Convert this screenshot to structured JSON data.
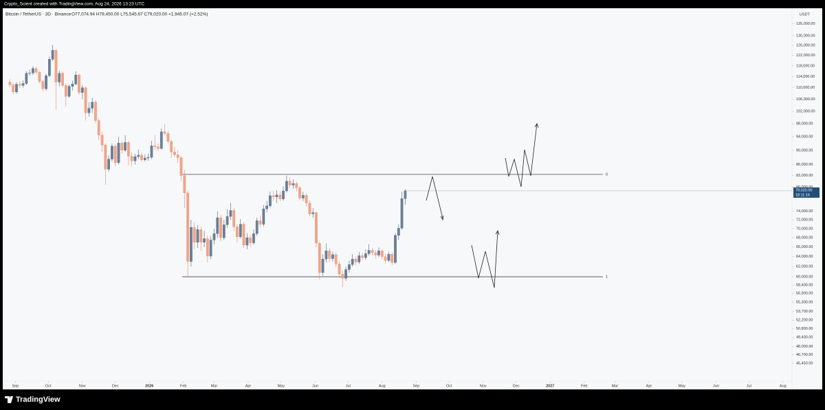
{
  "watermark": "Crypto_Scient created with TradingView.com, Aug 24, 2026 13:23 UTC",
  "brand": "TradingView",
  "chart_data": {
    "type": "candlestick",
    "title": "Bitcoin / TetherUS · 3D · Binance",
    "ohlc_legend": "O77,074.94 H79,450.00 L75,545.67 C79,020.00 +1,945.07 (+2.52%)",
    "currency": "USDT",
    "last_price_label": "79,020.00",
    "countdown": "18:11:16",
    "up_color": "#6b8097",
    "down_color": "#f2a487",
    "log_scale": true,
    "xlim": [
      "2025-08-18",
      "2027-08-08"
    ],
    "ylim": [
      42930,
      137000
    ],
    "x": [
      "2025-08-27",
      "2025-08-30",
      "2025-09-02",
      "2025-09-05",
      "2025-09-08",
      "2025-09-11",
      "2025-09-14",
      "2025-09-17",
      "2025-09-20",
      "2025-09-23",
      "2025-09-26",
      "2025-09-29",
      "2025-10-02",
      "2025-10-05",
      "2025-10-08",
      "2025-10-11",
      "2025-10-14",
      "2025-10-17",
      "2025-10-20",
      "2025-10-23",
      "2025-10-26",
      "2025-10-29",
      "2025-11-01",
      "2025-11-04",
      "2025-11-07",
      "2025-11-10",
      "2025-11-13",
      "2025-11-16",
      "2025-11-19",
      "2025-11-22",
      "2025-11-25",
      "2025-11-28",
      "2025-12-01",
      "2025-12-04",
      "2025-12-07",
      "2025-12-10",
      "2025-12-13",
      "2025-12-16",
      "2025-12-19",
      "2025-12-22",
      "2025-12-25",
      "2025-12-28",
      "2025-12-31",
      "2026-01-03",
      "2026-01-06",
      "2026-01-09",
      "2026-01-12",
      "2026-01-15",
      "2026-01-18",
      "2026-01-21",
      "2026-01-24",
      "2026-01-27",
      "2026-01-30",
      "2026-02-02",
      "2026-02-05",
      "2026-02-08",
      "2026-02-11",
      "2026-02-14",
      "2026-02-17",
      "2026-02-20",
      "2026-02-23",
      "2026-02-26",
      "2026-03-01",
      "2026-03-04",
      "2026-03-07",
      "2026-03-10",
      "2026-03-13",
      "2026-03-16",
      "2026-03-19",
      "2026-03-22",
      "2026-03-25",
      "2026-03-28",
      "2026-03-31",
      "2026-04-03",
      "2026-04-06",
      "2026-04-09",
      "2026-04-12",
      "2026-04-15",
      "2026-04-18",
      "2026-04-21",
      "2026-04-24",
      "2026-04-27",
      "2026-04-30",
      "2026-05-03",
      "2026-05-06",
      "2026-05-09",
      "2026-05-12",
      "2026-05-15",
      "2026-05-18",
      "2026-05-21",
      "2026-05-24",
      "2026-05-27",
      "2026-05-30",
      "2026-06-02",
      "2026-06-05",
      "2026-06-08",
      "2026-06-11",
      "2026-06-14",
      "2026-06-17",
      "2026-06-20",
      "2026-06-23",
      "2026-06-26",
      "2026-06-29",
      "2026-07-02",
      "2026-07-05",
      "2026-07-08",
      "2026-07-11",
      "2026-07-14",
      "2026-07-17",
      "2026-07-20",
      "2026-07-23",
      "2026-07-26",
      "2026-07-29",
      "2026-08-01",
      "2026-08-04",
      "2026-08-07",
      "2026-08-10",
      "2026-08-13",
      "2026-08-16",
      "2026-08-19",
      "2026-08-22"
    ],
    "open": [
      112000,
      111000,
      108500,
      111200,
      110800,
      111500,
      115200,
      115300,
      117000,
      115600,
      112200,
      109600,
      114300,
      120500,
      124000,
      112000,
      115200,
      110800,
      107000,
      110500,
      111300,
      114600,
      108300,
      110000,
      101500,
      103000,
      105000,
      99000,
      94500,
      91500,
      84700,
      87500,
      91200,
      86500,
      92100,
      90000,
      92300,
      88300,
      87000,
      88200,
      88600,
      87300,
      87800,
      88000,
      91300,
      91000,
      90500,
      95500,
      95000,
      92600,
      89500,
      88700,
      87900,
      83000,
      78500,
      63000,
      70300,
      67000,
      69800,
      67000,
      67800,
      64100,
      67500,
      68900,
      72500,
      68000,
      70900,
      72800,
      74200,
      70400,
      68200,
      71000,
      66400,
      68000,
      66900,
      68900,
      71800,
      71000,
      74600,
      75300,
      77800,
      77500,
      78000,
      77000,
      79000,
      81500,
      80500,
      80900,
      79800,
      77200,
      77900,
      76000,
      73400,
      73700,
      66800,
      60800,
      63500,
      65200,
      63600,
      64400,
      62500,
      60500,
      59700,
      61400,
      62400,
      63500,
      62900,
      64200,
      63800,
      64600,
      65300,
      64800,
      64300,
      65200,
      64000,
      63200,
      64500,
      62800,
      68500,
      70100,
      77074.94
    ],
    "high": [
      113000,
      111800,
      112000,
      112300,
      112600,
      116000,
      116600,
      117900,
      117600,
      116100,
      112900,
      115000,
      121500,
      126200,
      124500,
      116000,
      115800,
      111500,
      111200,
      112500,
      116000,
      115000,
      111000,
      110500,
      105000,
      106500,
      105600,
      99800,
      95500,
      92000,
      88500,
      92000,
      91800,
      94000,
      92800,
      94500,
      92800,
      89500,
      89000,
      90200,
      89300,
      88800,
      89000,
      92800,
      94500,
      92000,
      96500,
      97900,
      95800,
      93000,
      91000,
      90000,
      88500,
      84500,
      79200,
      72000,
      71500,
      70800,
      70500,
      69500,
      68500,
      68300,
      70000,
      74000,
      73200,
      72000,
      74500,
      76000,
      74800,
      71000,
      72200,
      71500,
      69000,
      68700,
      69800,
      72500,
      73000,
      75500,
      76500,
      78800,
      79000,
      79200,
      78900,
      80200,
      83000,
      82500,
      82000,
      81500,
      80200,
      78800,
      78400,
      76600,
      74800,
      74000,
      67200,
      64500,
      66800,
      65800,
      65000,
      64900,
      63000,
      61200,
      62000,
      63200,
      64500,
      64000,
      65000,
      64900,
      65500,
      66600,
      65800,
      65400,
      65900,
      65600,
      64600,
      65000,
      64900,
      69000,
      71000,
      78800,
      79450
    ],
    "low": [
      110200,
      107600,
      107900,
      109900,
      110000,
      111000,
      114200,
      114600,
      114800,
      111500,
      108600,
      108900,
      113800,
      119800,
      102500,
      110500,
      110000,
      103500,
      106500,
      109000,
      110800,
      107500,
      106000,
      99000,
      100300,
      101500,
      98200,
      93000,
      89500,
      80600,
      84000,
      86800,
      85500,
      86000,
      89000,
      89500,
      85800,
      85500,
      86000,
      87500,
      86700,
      86800,
      87000,
      87500,
      90000,
      89800,
      90200,
      94500,
      92000,
      87800,
      88000,
      86500,
      81500,
      74800,
      60000,
      62000,
      65500,
      65800,
      65200,
      66000,
      62800,
      63500,
      66500,
      68000,
      67200,
      67500,
      70200,
      72000,
      69500,
      67000,
      67800,
      65800,
      65500,
      66000,
      66500,
      68400,
      70200,
      70500,
      73800,
      74900,
      76500,
      76000,
      76400,
      76600,
      78600,
      79800,
      79500,
      78900,
      76800,
      76500,
      75200,
      72800,
      72500,
      66000,
      59500,
      60200,
      62800,
      62900,
      63000,
      61800,
      59800,
      58000,
      59200,
      60800,
      62000,
      62200,
      62500,
      63200,
      63300,
      64200,
      64200,
      63600,
      63900,
      63400,
      62600,
      62900,
      62300,
      62500,
      67500,
      69800,
      75545.67
    ],
    "close": [
      111000,
      108500,
      111200,
      110800,
      111500,
      115200,
      115300,
      117000,
      115600,
      112200,
      109600,
      114300,
      120500,
      124000,
      112000,
      115200,
      110800,
      107000,
      110500,
      111300,
      114600,
      108300,
      110000,
      101500,
      103000,
      105000,
      99000,
      94500,
      91500,
      84700,
      87500,
      91200,
      86500,
      92100,
      90000,
      92300,
      88300,
      87000,
      88200,
      88600,
      87300,
      87800,
      88000,
      91300,
      91000,
      90500,
      95500,
      95000,
      92600,
      89500,
      88700,
      87900,
      83000,
      78500,
      63000,
      70300,
      67000,
      69800,
      67000,
      67800,
      64100,
      67500,
      68900,
      72500,
      68000,
      70900,
      72800,
      74200,
      70400,
      68200,
      71000,
      66400,
      68000,
      66900,
      68900,
      71800,
      71000,
      74600,
      75300,
      77800,
      77500,
      78000,
      77000,
      79000,
      81500,
      80500,
      80900,
      79800,
      77200,
      77900,
      76000,
      73400,
      73700,
      66800,
      60800,
      63500,
      65200,
      63600,
      64400,
      62500,
      60500,
      59700,
      61400,
      62400,
      63500,
      62900,
      64200,
      63800,
      64600,
      65300,
      64800,
      64300,
      65200,
      64000,
      63200,
      64500,
      62800,
      68500,
      70100,
      77074.94,
      79020
    ],
    "levels": [
      {
        "price": 83300,
        "start": "2026-01-31",
        "end": "2027-02-18",
        "label": "0"
      },
      {
        "price": 60000,
        "start": "2026-01-31",
        "end": "2027-02-18",
        "label": "1"
      }
    ],
    "xticks": [
      {
        "value": "2025-09-01",
        "label": "Sep"
      },
      {
        "value": "2025-10-01",
        "label": "Oct"
      },
      {
        "value": "2025-11-01",
        "label": "Nov"
      },
      {
        "value": "2025-12-01",
        "label": "Dec"
      },
      {
        "value": "2026-01-01",
        "label": "2026"
      },
      {
        "value": "2026-02-01",
        "label": "Feb"
      },
      {
        "value": "2026-03-01",
        "label": "Mar"
      },
      {
        "value": "2026-04-01",
        "label": "Apr"
      },
      {
        "value": "2026-05-01",
        "label": "May"
      },
      {
        "value": "2026-06-01",
        "label": "Jun"
      },
      {
        "value": "2026-07-01",
        "label": "Jul"
      },
      {
        "value": "2026-08-01",
        "label": "Aug"
      },
      {
        "value": "2026-09-01",
        "label": "Sep"
      },
      {
        "value": "2026-10-01",
        "label": "Oct"
      },
      {
        "value": "2026-11-01",
        "label": "Nov"
      },
      {
        "value": "2026-12-01",
        "label": "Dec"
      },
      {
        "value": "2027-01-01",
        "label": "2027"
      },
      {
        "value": "2027-02-01",
        "label": "Feb"
      },
      {
        "value": "2027-03-01",
        "label": "Mar"
      },
      {
        "value": "2027-04-01",
        "label": "Apr"
      },
      {
        "value": "2027-05-01",
        "label": "May"
      },
      {
        "value": "2027-06-01",
        "label": "Jun"
      },
      {
        "value": "2027-07-01",
        "label": "Jul"
      },
      {
        "value": "2027-08-01",
        "label": "Aug"
      }
    ],
    "yticks": [
      {
        "value": 135000,
        "label": "135,000.00"
      },
      {
        "value": 130000,
        "label": "130,000.00"
      },
      {
        "value": 126000,
        "label": "126,000.00"
      },
      {
        "value": 122000,
        "label": "122,000.00"
      },
      {
        "value": 118000,
        "label": "118,000.00"
      },
      {
        "value": 114000,
        "label": "114,000.00"
      },
      {
        "value": 110000,
        "label": "110,000.00"
      },
      {
        "value": 106000,
        "label": "106,000.00"
      },
      {
        "value": 102000,
        "label": "102,000.00"
      },
      {
        "value": 98000,
        "label": "98,000.00"
      },
      {
        "value": 94000,
        "label": "94,000.00"
      },
      {
        "value": 90000,
        "label": "90,000.00"
      },
      {
        "value": 86000,
        "label": "86,000.00"
      },
      {
        "value": 83000,
        "label": "83,000.00"
      },
      {
        "value": 80000,
        "label": "80,000.00"
      },
      {
        "value": 74000,
        "label": "74,000.00"
      },
      {
        "value": 72000,
        "label": "72,000.00"
      },
      {
        "value": 70000,
        "label": "70,000.00"
      },
      {
        "value": 68000,
        "label": "68,000.00"
      },
      {
        "value": 66000,
        "label": "66,000.00"
      },
      {
        "value": 64000,
        "label": "64,000.00"
      },
      {
        "value": 62000,
        "label": "62,000.00"
      },
      {
        "value": 60000,
        "label": "60,000.00"
      },
      {
        "value": 58400,
        "label": "58,400.00"
      },
      {
        "value": 56900,
        "label": "56,900.00"
      },
      {
        "value": 55300,
        "label": "55,300.00"
      },
      {
        "value": 53700,
        "label": "53,700.00"
      },
      {
        "value": 52200,
        "label": "52,200.00"
      },
      {
        "value": 50800,
        "label": "50,800.00"
      },
      {
        "value": 49400,
        "label": "49,400.00"
      },
      {
        "value": 48000,
        "label": "48,000.00"
      },
      {
        "value": 46700,
        "label": "46,700.00"
      },
      {
        "value": 45450,
        "label": "45,450.00"
      }
    ]
  }
}
